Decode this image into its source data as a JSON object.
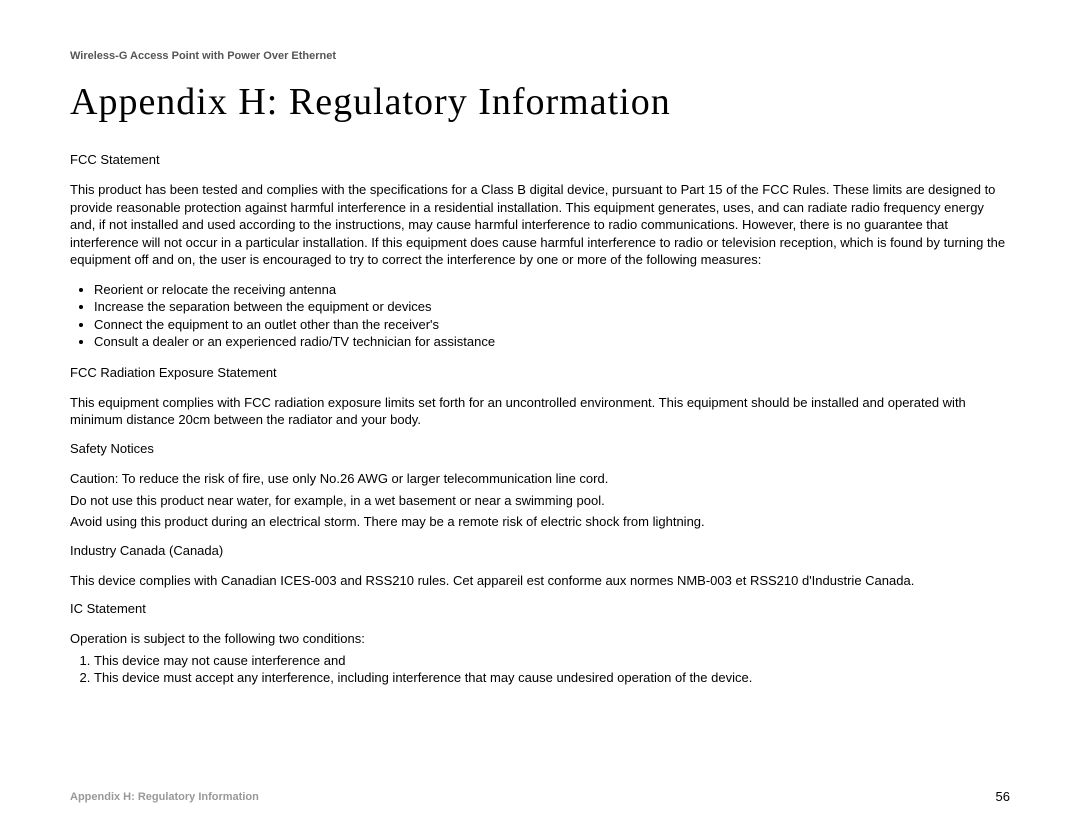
{
  "header": {
    "product_name": "Wireless-G Access Point with Power Over Ethernet"
  },
  "title": "Appendix H: Regulatory Information",
  "sections": {
    "fcc_statement": {
      "heading": "FCC Statement",
      "body": "This product has been tested and complies with the specifications for a Class B digital device, pursuant to Part 15 of the FCC Rules. These limits are designed to provide reasonable protection against harmful interference in a residential installation. This equipment generates, uses, and can radiate radio frequency energy and, if not installed and used according to the instructions, may cause harmful interference to radio communications. However, there is no guarantee that interference will not occur in a particular installation. If this equipment does cause harmful interference to radio or television reception, which is found by turning the equipment off and on, the user is encouraged to try to correct the interference by one or more of the following measures:",
      "bullets": [
        "Reorient or relocate the receiving antenna",
        "Increase the separation between the equipment or devices",
        "Connect the equipment to an outlet other than the receiver's",
        "Consult a dealer or an experienced radio/TV technician for assistance"
      ]
    },
    "fcc_radiation": {
      "heading": "FCC Radiation Exposure Statement",
      "body": "This equipment complies with FCC radiation exposure limits set forth for an uncontrolled environment. This equipment should be installed and operated with minimum distance 20cm between the radiator and your body."
    },
    "safety_notices": {
      "heading": "Safety Notices",
      "line1": "Caution: To reduce the risk of fire, use only No.26 AWG or larger telecommunication line cord.",
      "line2": "Do not use this product near water, for example, in a wet basement or near a swimming pool.",
      "line3": "Avoid using this product during an electrical storm.  There may be a remote risk of electric shock from lightning."
    },
    "industry_canada": {
      "heading": "Industry Canada (Canada)",
      "body": "This device complies with Canadian ICES-003 and RSS210 rules. Cet appareil est conforme aux normes NMB-003 et RSS210 d'Industrie Canada."
    },
    "ic_statement": {
      "heading": "IC Statement",
      "intro": "Operation is subject to the following two conditions:",
      "items": [
        "This device may not cause interference and",
        "This device must accept any interference, including interference that may cause undesired operation of the device."
      ]
    }
  },
  "footer": {
    "section_name": "Appendix H: Regulatory Information",
    "page_number": "56"
  }
}
